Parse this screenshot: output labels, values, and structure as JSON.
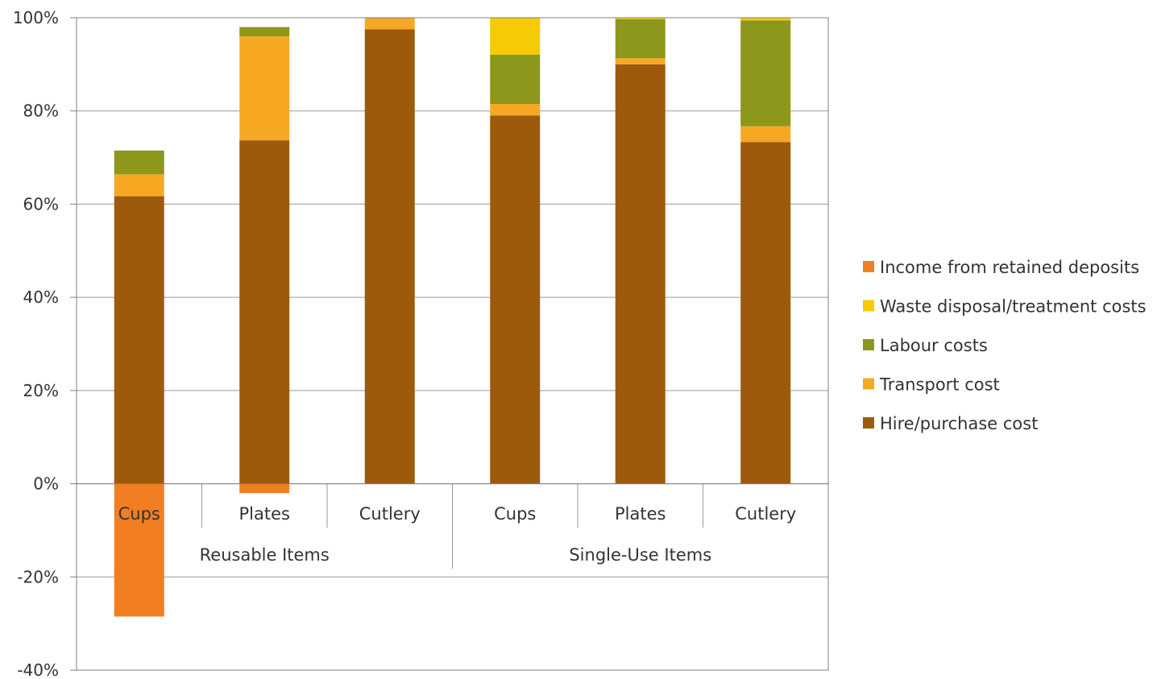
{
  "chart_data": {
    "type": "bar",
    "stacked": true,
    "percent_axis": true,
    "ylim": [
      -40,
      100
    ],
    "yticks": [
      "-40%",
      "-20%",
      "0%",
      "20%",
      "40%",
      "60%",
      "80%",
      "100%"
    ],
    "ytick_values": [
      -40,
      -20,
      0,
      20,
      40,
      60,
      80,
      100
    ],
    "categories": [
      "Cups",
      "Plates",
      "Cutlery",
      "Cups",
      "Plates",
      "Cutlery"
    ],
    "groups": [
      {
        "label": "Reusable Items",
        "span": 3
      },
      {
        "label": "Single-Use Items",
        "span": 3
      }
    ],
    "series": [
      {
        "name": "Hire/purchase cost",
        "color": "#9E5A0C",
        "values": [
          61.7,
          73.7,
          97.5,
          79.0,
          90.0,
          73.3
        ]
      },
      {
        "name": "Transport cost",
        "color": "#F7A823",
        "values": [
          4.7,
          22.3,
          2.5,
          2.5,
          1.3,
          3.4
        ]
      },
      {
        "name": "Labour costs",
        "color": "#8C971B",
        "values": [
          5.1,
          2.0,
          0.0,
          10.6,
          8.4,
          22.7
        ]
      },
      {
        "name": "Waste disposal/treatment costs",
        "color": "#F6CB05",
        "values": [
          0.0,
          0.0,
          0.0,
          7.9,
          0.3,
          0.6
        ]
      },
      {
        "name": "Income from retained deposits",
        "color": "#F27E22",
        "values": [
          -28.5,
          -2.0,
          0.0,
          0.0,
          0.0,
          0.0
        ]
      }
    ],
    "legend_order": [
      "Income from retained deposits",
      "Waste disposal/treatment costs",
      "Labour costs",
      "Transport cost",
      "Hire/purchase cost"
    ],
    "legend_position": "right",
    "grid": true
  }
}
